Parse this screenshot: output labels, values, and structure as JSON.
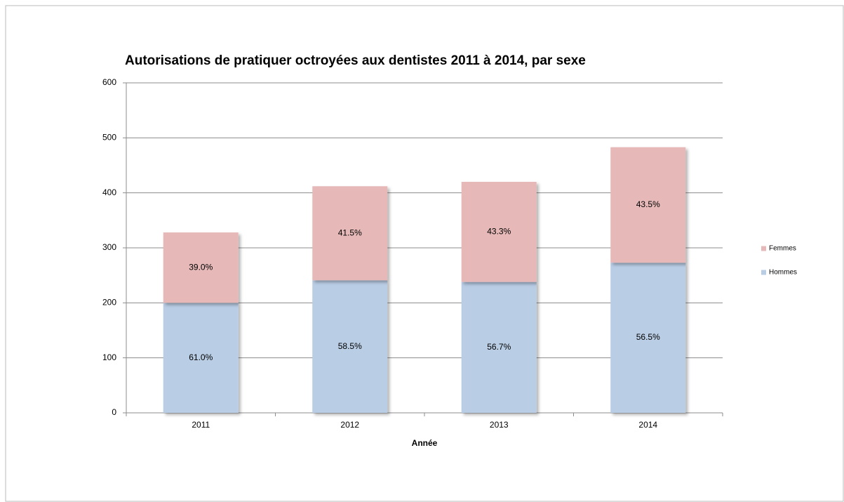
{
  "chart_data": {
    "type": "stacked_bar",
    "title": "Autorisations de pratiquer octroyées aux dentistes 2011 à 2014, par sexe",
    "x_label": "Année",
    "categories": [
      "2011",
      "2012",
      "2013",
      "2014"
    ],
    "series": [
      {
        "name": "Hommes",
        "color": "#b9cde5",
        "values": [
          200,
          241,
          238,
          273
        ],
        "labels": [
          "61.0%",
          "58.5%",
          "56.7%",
          "56.5%"
        ]
      },
      {
        "name": "Femmes",
        "color": "#e6b9b8",
        "values": [
          128,
          171,
          182,
          210
        ],
        "labels": [
          "39.0%",
          "41.5%",
          "43.3%",
          "43.5%"
        ]
      }
    ],
    "ylim": [
      0,
      600
    ],
    "yticks": [
      0,
      100,
      200,
      300,
      400,
      500,
      600
    ],
    "grid": true,
    "legend": "right"
  }
}
